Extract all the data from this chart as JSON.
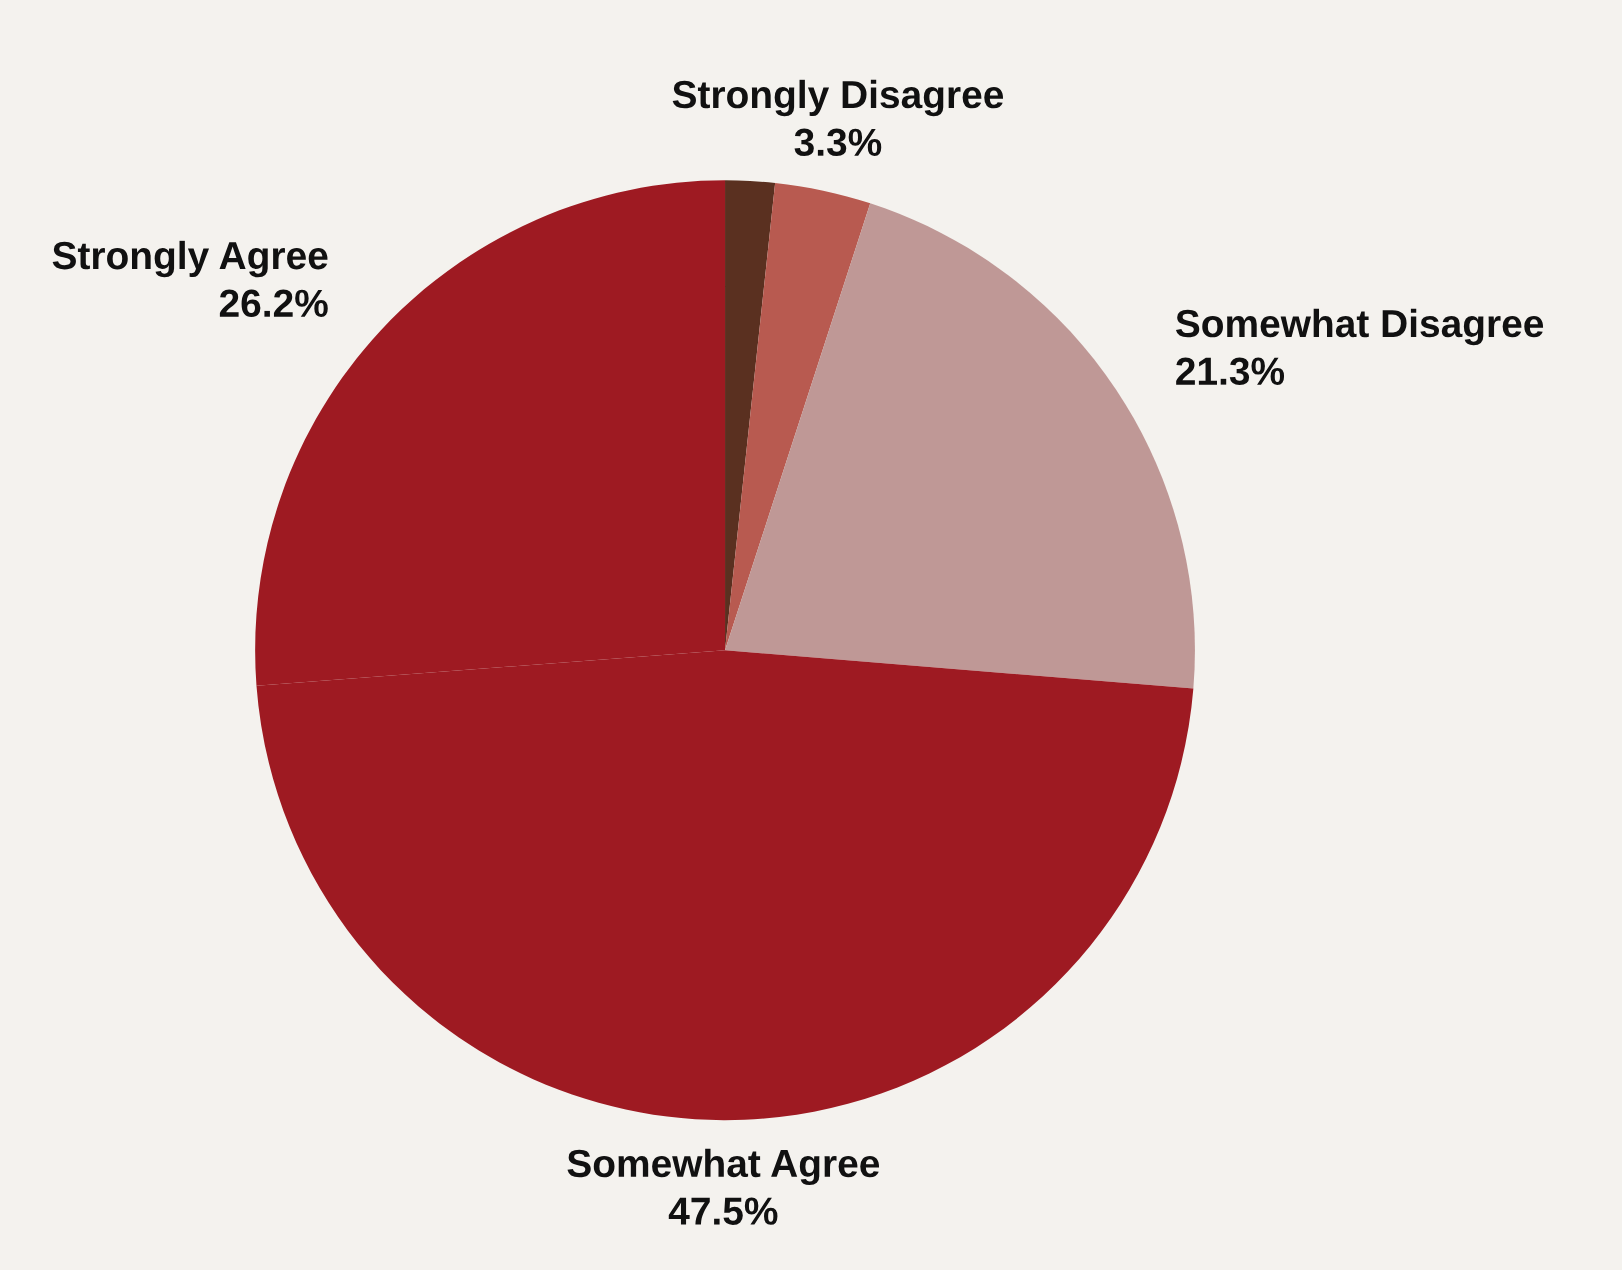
{
  "chart_data": {
    "type": "pie",
    "categories": [
      null,
      "Strongly Disagree",
      "Somewhat Disagree",
      "Somewhat Agree",
      "Strongly Agree"
    ],
    "values": [
      1.7,
      3.3,
      21.3,
      47.5,
      26.2
    ],
    "value_labels": [
      null,
      "3.3%",
      "21.3%",
      "47.5%",
      "26.2%"
    ],
    "colors": [
      "#5a3020",
      "#b85a50",
      "#bf9896",
      "#9e1a22",
      "#9e1a22"
    ]
  }
}
